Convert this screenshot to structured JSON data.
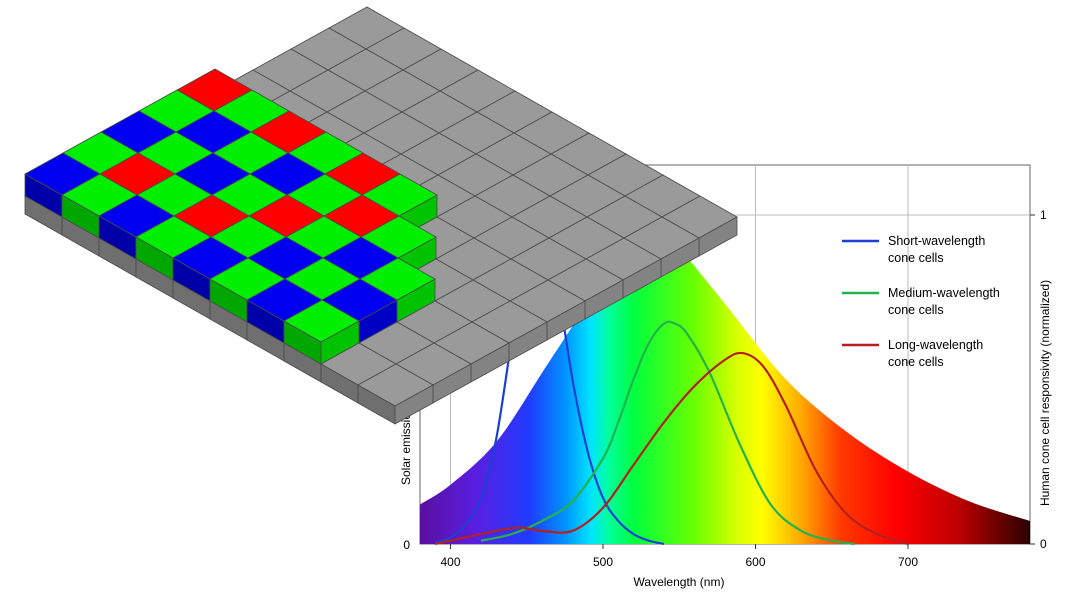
{
  "chart_data": {
    "type": "line",
    "xlabel": "Wavelength (nm)",
    "ylabel_left": "Solar emission in",
    "ylabel_right": "Human cone cell responsivity (normalized)",
    "xlim": [
      380,
      780
    ],
    "ylim": [
      0,
      1
    ],
    "x_ticks": [
      "400",
      "500",
      "600",
      "700"
    ],
    "x_tick_values": [
      400,
      500,
      600,
      700
    ],
    "y_left_ticks": [
      "0"
    ],
    "y_right_ticks": [
      "0",
      "1"
    ],
    "grid": true,
    "legend_position": "top-right",
    "solar_emission": {
      "x": [
        380,
        400,
        430,
        460,
        490,
        505,
        520,
        535,
        550,
        580,
        620,
        660,
        700,
        740,
        780
      ],
      "y": [
        0.12,
        0.18,
        0.31,
        0.52,
        0.74,
        0.9,
        0.99,
        0.97,
        0.9,
        0.73,
        0.5,
        0.34,
        0.22,
        0.13,
        0.07
      ]
    },
    "series": [
      {
        "name": "Short-wavelength cone cells",
        "color": "#1c3fd6",
        "x": [
          390,
          400,
          410,
          420,
          430,
          440,
          445,
          450,
          455,
          460,
          465,
          470,
          480,
          490,
          500,
          510,
          520,
          530,
          540
        ],
        "y": [
          0.005,
          0.02,
          0.06,
          0.14,
          0.32,
          0.62,
          0.78,
          0.93,
          1.02,
          1.04,
          0.96,
          0.8,
          0.5,
          0.28,
          0.14,
          0.07,
          0.03,
          0.01,
          0.0
        ]
      },
      {
        "name": "Medium-wavelength cone cells",
        "color": "#22b34a",
        "x": [
          420,
          440,
          460,
          480,
          500,
          510,
          520,
          530,
          540,
          547,
          555,
          570,
          590,
          610,
          630,
          650,
          665
        ],
        "y": [
          0.01,
          0.03,
          0.07,
          0.13,
          0.26,
          0.37,
          0.5,
          0.61,
          0.67,
          0.67,
          0.64,
          0.52,
          0.3,
          0.12,
          0.04,
          0.01,
          0.0
        ]
      },
      {
        "name": "Long-wavelength cone cells",
        "color": "#b5201f",
        "x": [
          390,
          410,
          430,
          445,
          460,
          480,
          500,
          520,
          540,
          560,
          580,
          592,
          605,
          620,
          640,
          660,
          680,
          700
        ],
        "y": [
          0.0,
          0.02,
          0.04,
          0.05,
          0.04,
          0.04,
          0.11,
          0.24,
          0.37,
          0.48,
          0.56,
          0.58,
          0.54,
          0.42,
          0.22,
          0.09,
          0.03,
          0.0
        ]
      }
    ]
  },
  "sensor": {
    "rows": [
      [
        "B",
        "G",
        "B",
        "G",
        "R"
      ],
      [
        "G",
        "R",
        "G",
        "B",
        "G"
      ],
      [
        "B",
        "G",
        "B",
        "G",
        "R"
      ],
      [
        "G",
        "R",
        "G",
        "B",
        "G"
      ],
      [
        "B",
        "G",
        "R",
        "G",
        "R"
      ],
      [
        "G",
        "B",
        "G",
        "R",
        "G"
      ],
      [
        "B",
        "G",
        "B",
        "G",
        "-"
      ],
      [
        "G",
        "B",
        "G",
        "-",
        "-"
      ]
    ],
    "grid_rows": 10,
    "grid_cols": 9,
    "colors": {
      "R": "#ff0000",
      "G": "#00ee00",
      "B": "#0000f0",
      "base": "#9a9a9a"
    }
  }
}
